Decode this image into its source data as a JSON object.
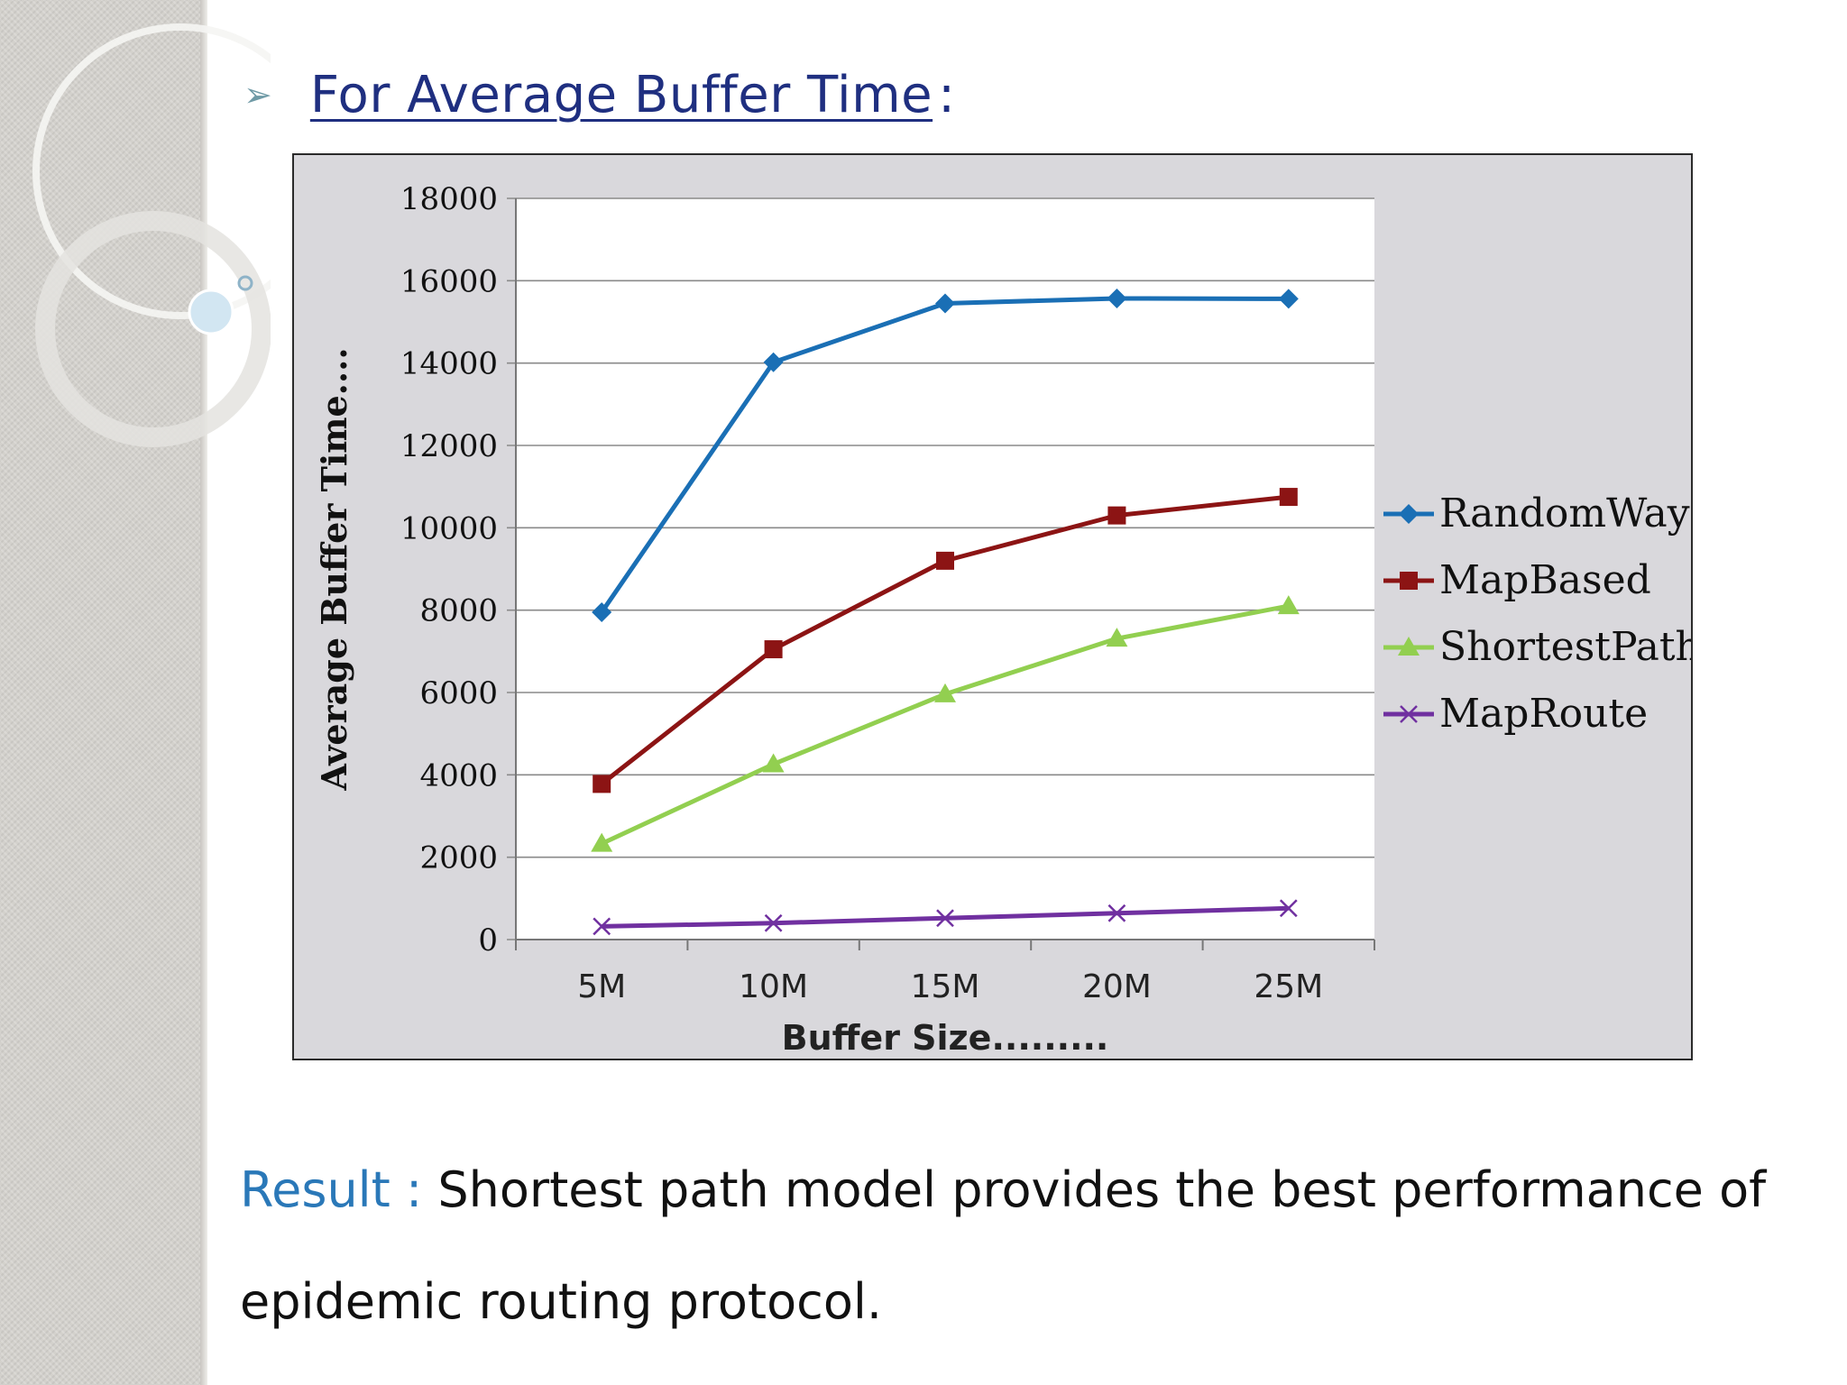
{
  "slide": {
    "title": "For  Average Buffer Time ",
    "title_colon": ":",
    "result_label": "Result : ",
    "result_text_line1": "Shortest path model provides the best performance of",
    "result_text_line2": "epidemic routing protocol."
  },
  "chart_data": {
    "type": "line",
    "title": "",
    "xlabel": "Buffer Size.........",
    "ylabel": "Average Buffer Time....",
    "categories": [
      "5M",
      "10M",
      "15M",
      "20M",
      "25M"
    ],
    "ylim": [
      0,
      18000
    ],
    "yticks": [
      "0",
      "2000",
      "4000",
      "6000",
      "8000",
      "10000",
      "12000",
      "14000",
      "16000",
      "18000"
    ],
    "grid": true,
    "legend_position": "right",
    "series": [
      {
        "name": "RandomWay",
        "values": [
          7950,
          14020,
          15450,
          15570,
          15560
        ],
        "color": "#1a6fb5",
        "marker": "diamond"
      },
      {
        "name": "MapBased",
        "values": [
          3780,
          7050,
          9200,
          10300,
          10750
        ],
        "color": "#8c1414",
        "marker": "square"
      },
      {
        "name": "ShortestPath",
        "values": [
          2330,
          4260,
          5960,
          7310,
          8100
        ],
        "color": "#92cf50",
        "marker": "triangle"
      },
      {
        "name": "MapRoute",
        "values": [
          320,
          400,
          520,
          640,
          760
        ],
        "color": "#7030a0",
        "marker": "x"
      }
    ]
  }
}
